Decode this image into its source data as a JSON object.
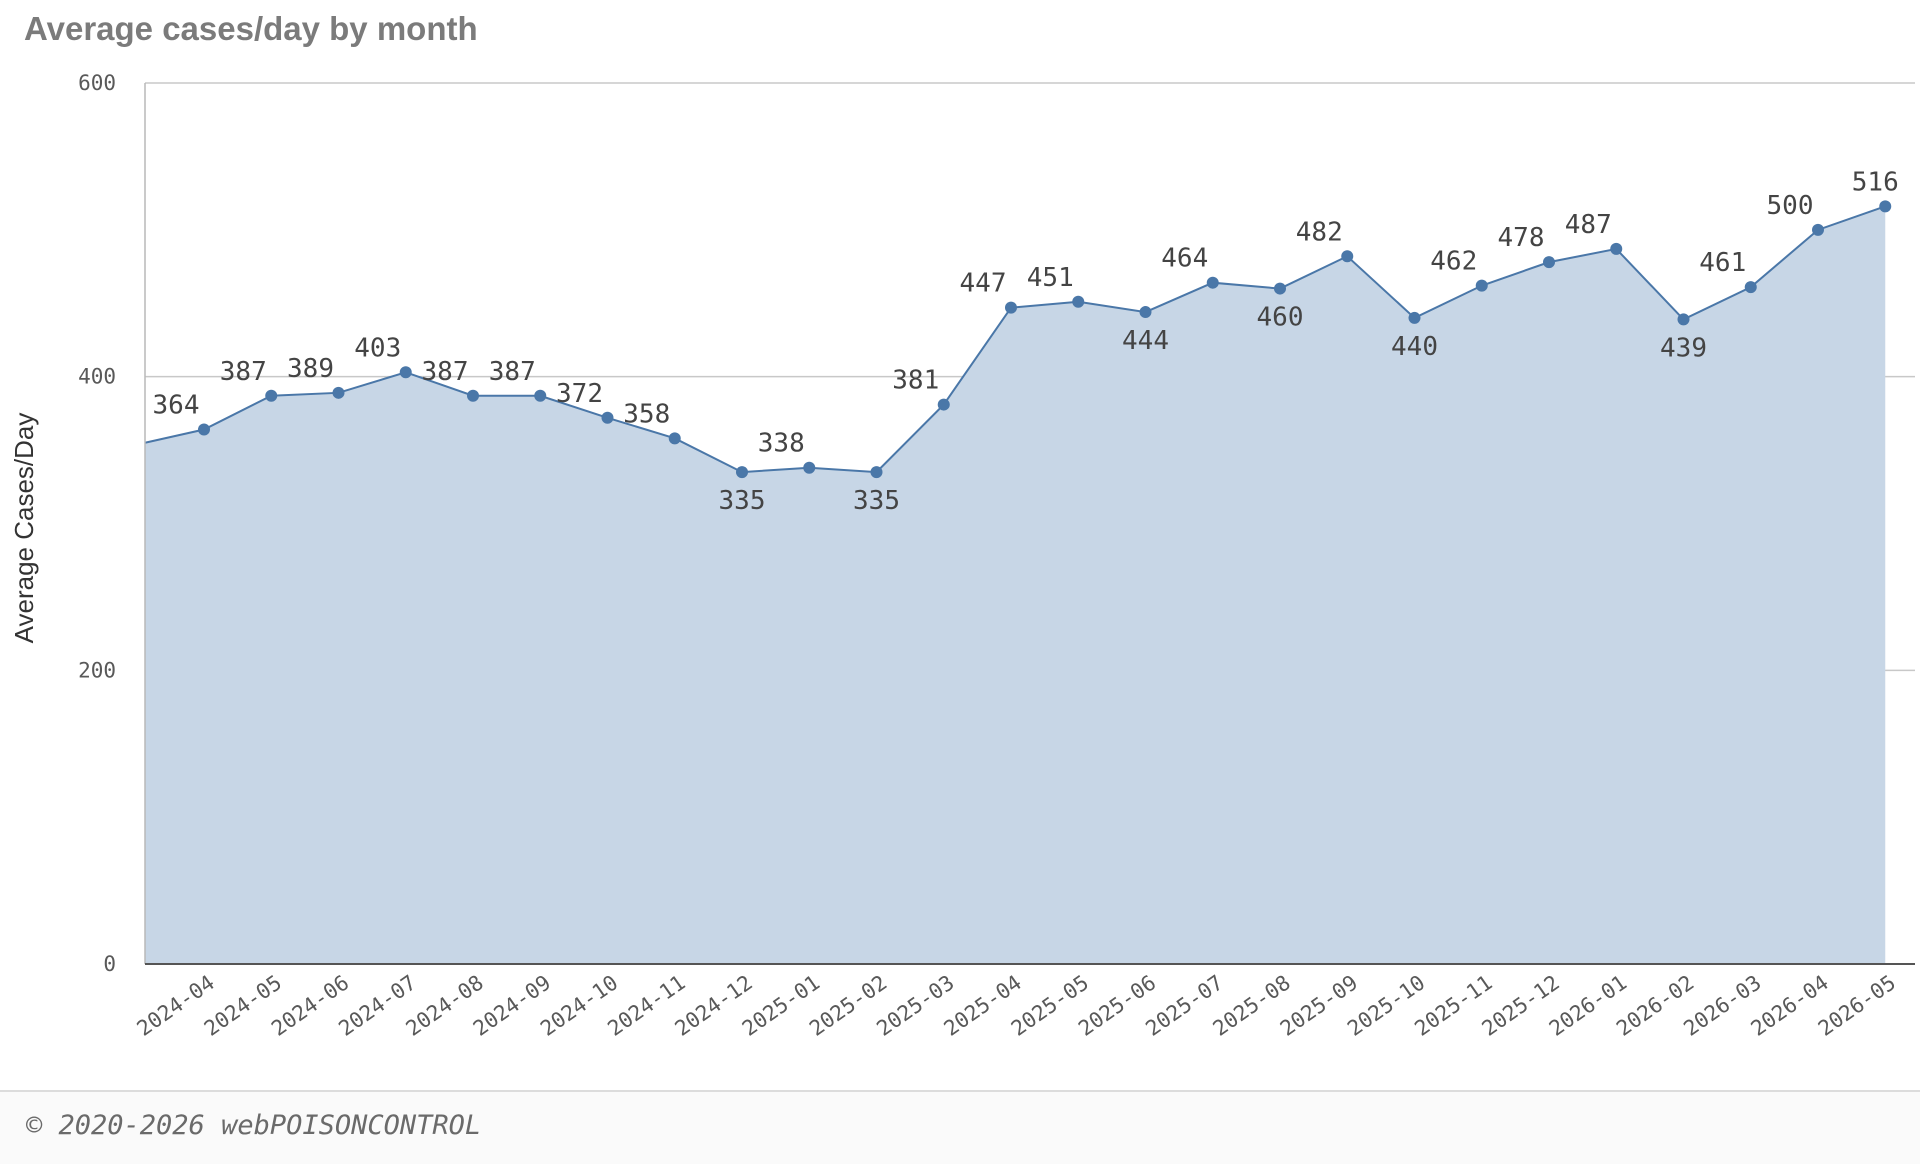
{
  "title": "Average cases/day by month",
  "footer": "© 2020-2026 webPOISONCONTROL",
  "chart_data": {
    "type": "area",
    "title": "Average cases/day by month",
    "ylabel": "Average Cases/Day",
    "xlabel": "",
    "ylim": [
      0,
      600
    ],
    "yticks": [
      0,
      200,
      400,
      600
    ],
    "grid": true,
    "fill_color": "#c7d6e6",
    "line_color": "#4a77a8",
    "start_value": 355,
    "categories": [
      "2024-04",
      "2024-05",
      "2024-06",
      "2024-07",
      "2024-08",
      "2024-09",
      "2024-10",
      "2024-11",
      "2024-12",
      "2025-01",
      "2025-02",
      "2025-03",
      "2025-04",
      "2025-05",
      "2025-06",
      "2025-07",
      "2025-08",
      "2025-09",
      "2025-10",
      "2025-11",
      "2025-12",
      "2026-01",
      "2026-02",
      "2026-03",
      "2026-04",
      "2026-05"
    ],
    "values": [
      364,
      387,
      389,
      403,
      387,
      387,
      372,
      358,
      335,
      338,
      335,
      381,
      447,
      451,
      444,
      464,
      460,
      482,
      440,
      462,
      478,
      487,
      439,
      461,
      500,
      516
    ],
    "label_below": [
      false,
      false,
      false,
      false,
      false,
      false,
      false,
      false,
      true,
      false,
      true,
      false,
      false,
      false,
      true,
      false,
      true,
      false,
      true,
      false,
      false,
      false,
      true,
      false,
      false,
      false
    ]
  }
}
